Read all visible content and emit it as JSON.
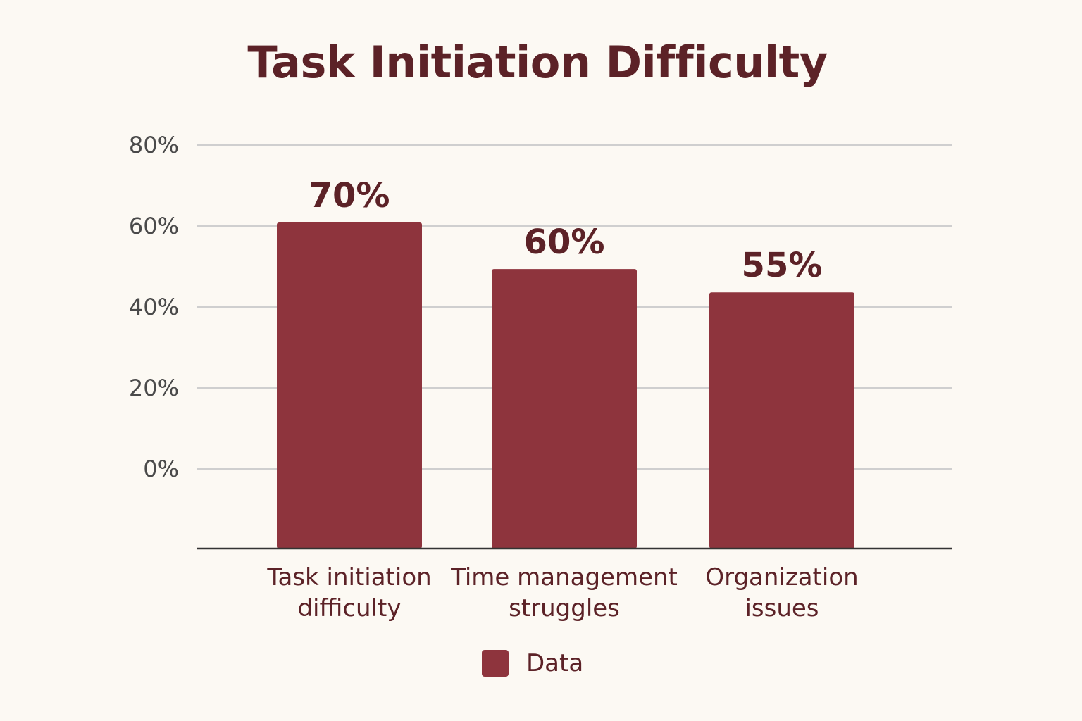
{
  "chart_data": {
    "type": "bar",
    "title": "Task Initiation Difficulty",
    "xlabel": "",
    "ylabel": "",
    "categories": [
      [
        "Task initiation",
        "difficulty"
      ],
      [
        "Time management",
        "struggles"
      ],
      [
        "Organization",
        "issues"
      ]
    ],
    "series": [
      {
        "name": "Data",
        "values": [
          70,
          60,
          55
        ],
        "data_labels": [
          "70%",
          "60%",
          "55%"
        ],
        "color": "#8e343d"
      }
    ],
    "y_ticks": [
      {
        "value": 0,
        "label": "0%"
      },
      {
        "value": 20,
        "label": "20%"
      },
      {
        "value": 40,
        "label": "40%"
      },
      {
        "value": 60,
        "label": "60%"
      },
      {
        "value": 80,
        "label": "80%"
      }
    ],
    "ylim": [
      0,
      80
    ],
    "grid": true,
    "legend": "bottom-center"
  },
  "colors": {
    "background": "#fcf9f3",
    "bar": "#8e343d",
    "text_dark": "#5c2227",
    "tick_text": "#4a4a4a",
    "grid": "#cfcfcf",
    "axis": "#333333"
  }
}
